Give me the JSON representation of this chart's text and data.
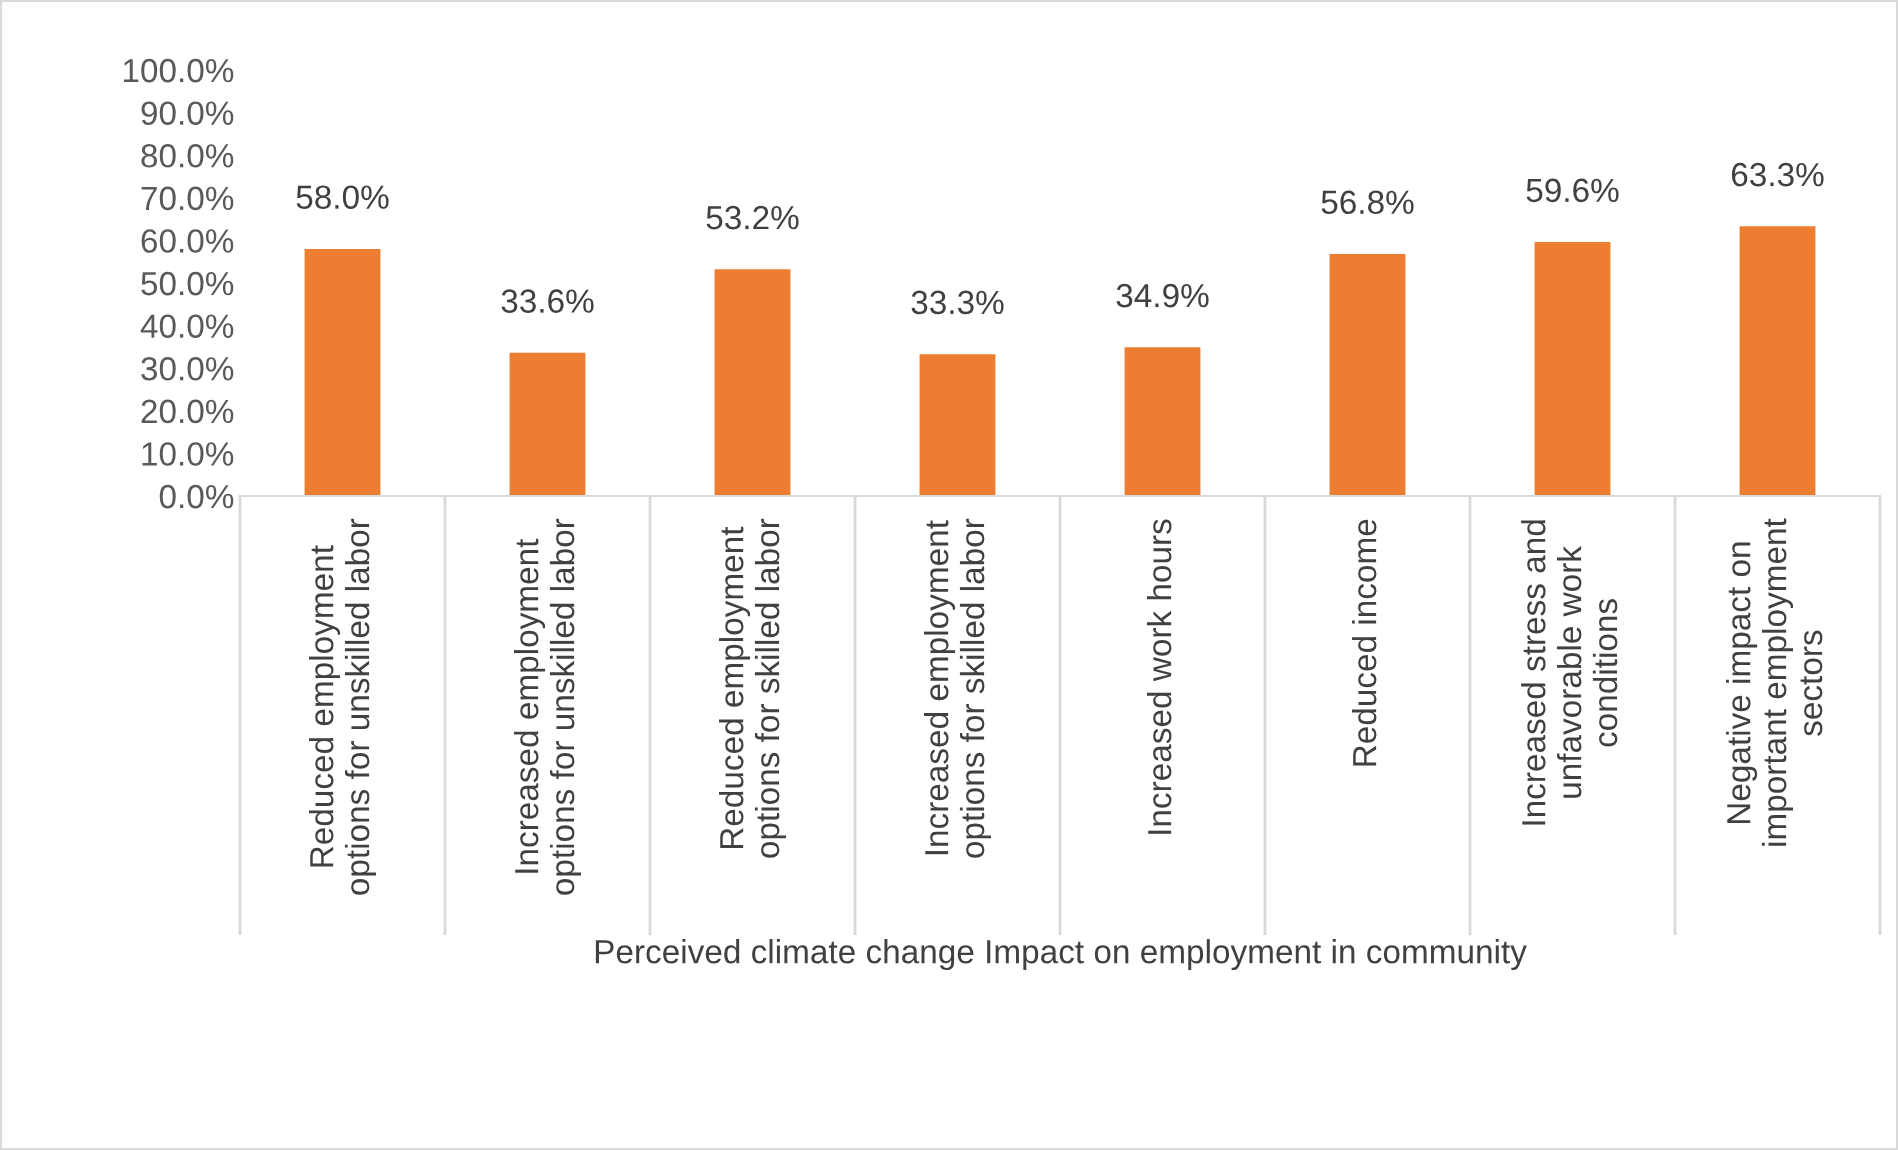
{
  "chart_data": {
    "type": "bar",
    "xlabel": "Perceived climate change Impact on employment in community",
    "categories": [
      "Reduced employment\noptions for unskilled labor",
      "Increased employment\noptions for unskilled labor",
      "Reduced employment\noptions for skilled labor",
      "Increased employment\noptions for skilled labor",
      "Increased work hours",
      "Reduced income",
      "Increased stress and\nunfavorable work\nconditions",
      "Negative impact on\nimportant employment\nsectors"
    ],
    "values": [
      58.0,
      33.6,
      53.2,
      33.3,
      34.9,
      56.8,
      59.6,
      63.3
    ],
    "value_labels": [
      "58.0%",
      "33.6%",
      "53.2%",
      "33.3%",
      "34.9%",
      "56.8%",
      "59.6%",
      "63.3%"
    ],
    "color": "#ed7d31",
    "ylim": [
      0,
      100
    ],
    "yticks": [
      {
        "value": 0,
        "label": "0.0%"
      },
      {
        "value": 10,
        "label": "10.0%"
      },
      {
        "value": 20,
        "label": "20.0%"
      },
      {
        "value": 30,
        "label": "30.0%"
      },
      {
        "value": 40,
        "label": "40.0%"
      },
      {
        "value": 50,
        "label": "50.0%"
      },
      {
        "value": 60,
        "label": "60.0%"
      },
      {
        "value": 70,
        "label": "70.0%"
      },
      {
        "value": 80,
        "label": "80.0%"
      },
      {
        "value": 90,
        "label": "90.0%"
      },
      {
        "value": 100,
        "label": "100.0%"
      }
    ],
    "grid": false,
    "legend": false
  }
}
